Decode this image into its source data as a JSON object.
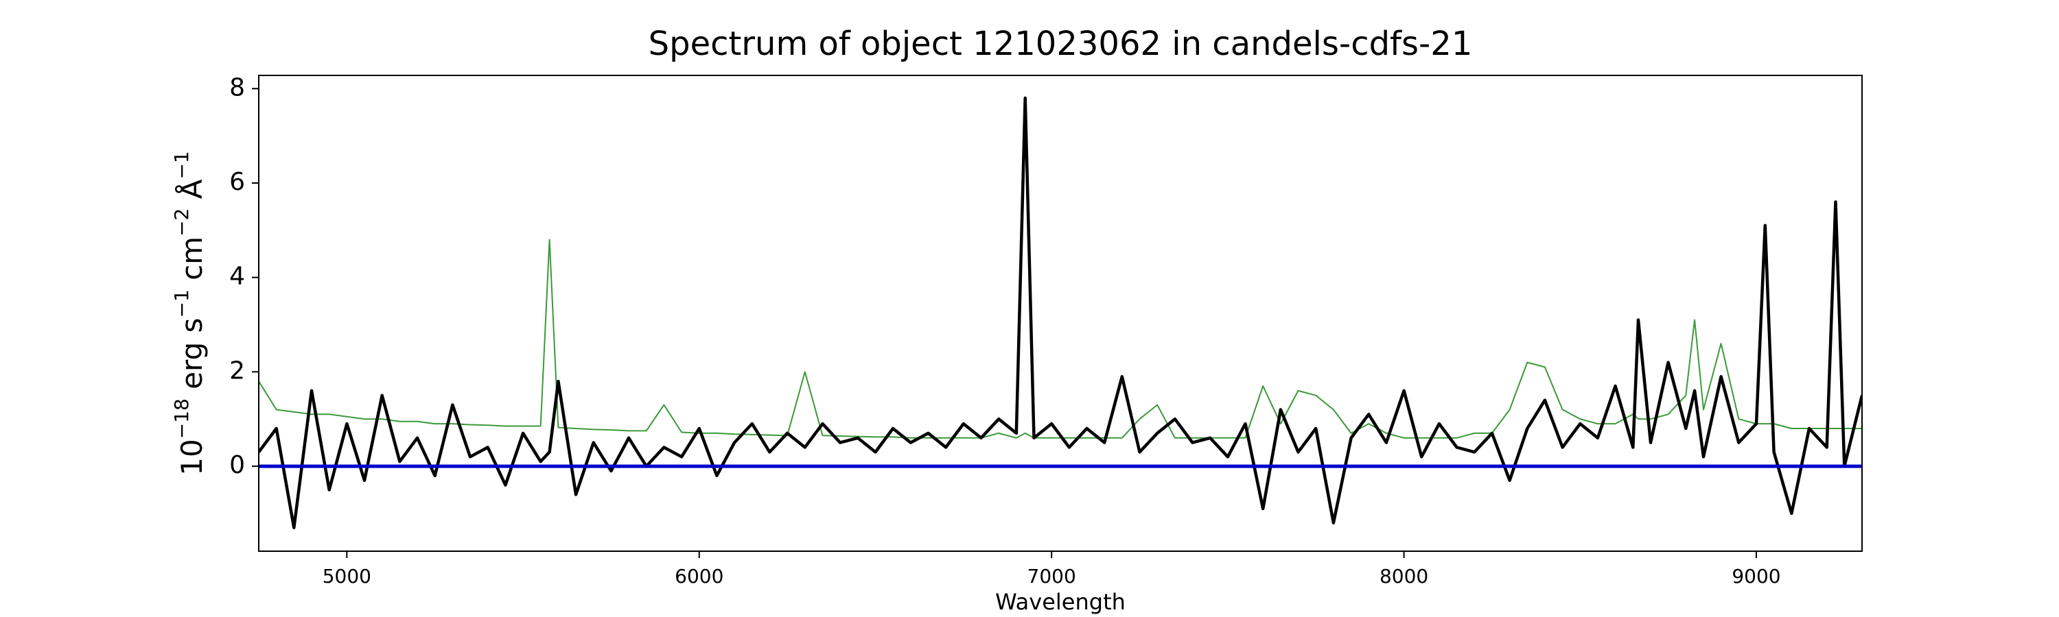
{
  "chart_data": {
    "type": "line",
    "title": "Spectrum of object 121023062 in candels-cdfs-21",
    "xlabel": "Wavelength",
    "ylabel": [
      {
        "text": "10"
      },
      {
        "text": "−18",
        "sup": true
      },
      {
        "text": " erg s"
      },
      {
        "text": "−1",
        "sup": true
      },
      {
        "text": " cm"
      },
      {
        "text": "−2",
        "sup": true
      },
      {
        "text": " Å"
      },
      {
        "text": "−1",
        "sup": true
      }
    ],
    "xlim": [
      4750,
      9300
    ],
    "ylim": [
      -1.8,
      8.28
    ],
    "xticks": [
      5000,
      6000,
      7000,
      8000,
      9000
    ],
    "yticks": [
      0,
      2,
      4,
      6,
      8
    ],
    "hlines": [
      {
        "y": 0,
        "color": "#0000cc"
      }
    ],
    "x": [
      4750,
      4800,
      4850,
      4900,
      4950,
      5000,
      5050,
      5100,
      5150,
      5200,
      5250,
      5300,
      5350,
      5400,
      5450,
      5500,
      5550,
      5575,
      5600,
      5650,
      5700,
      5750,
      5800,
      5850,
      5900,
      5950,
      6000,
      6050,
      6100,
      6150,
      6200,
      6250,
      6300,
      6350,
      6400,
      6450,
      6500,
      6550,
      6600,
      6650,
      6700,
      6750,
      6800,
      6850,
      6900,
      6925,
      6950,
      7000,
      7050,
      7100,
      7150,
      7200,
      7250,
      7300,
      7350,
      7400,
      7450,
      7500,
      7550,
      7600,
      7650,
      7700,
      7750,
      7800,
      7850,
      7900,
      7950,
      8000,
      8050,
      8100,
      8150,
      8200,
      8250,
      8300,
      8350,
      8400,
      8450,
      8500,
      8550,
      8600,
      8650,
      8665,
      8700,
      8750,
      8800,
      8825,
      8850,
      8900,
      8950,
      9000,
      9025,
      9050,
      9100,
      9150,
      9200,
      9225,
      9250,
      9300
    ],
    "series": [
      {
        "color": "#3a9a3a",
        "width": 2,
        "values": [
          1.8,
          1.2,
          1.15,
          1.1,
          1.1,
          1.05,
          1.0,
          1.0,
          0.95,
          0.95,
          0.9,
          0.9,
          0.88,
          0.87,
          0.85,
          0.85,
          0.85,
          4.8,
          0.82,
          0.8,
          0.78,
          0.77,
          0.75,
          0.75,
          1.3,
          0.72,
          0.7,
          0.7,
          0.68,
          0.67,
          0.66,
          0.65,
          2.0,
          0.65,
          0.64,
          0.63,
          0.62,
          0.62,
          0.6,
          0.6,
          0.6,
          0.6,
          0.6,
          0.7,
          0.6,
          0.7,
          0.6,
          0.6,
          0.6,
          0.6,
          0.6,
          0.6,
          1.0,
          1.3,
          0.6,
          0.6,
          0.6,
          0.6,
          0.6,
          1.7,
          0.9,
          1.6,
          1.5,
          1.2,
          0.7,
          0.9,
          0.7,
          0.6,
          0.6,
          0.6,
          0.6,
          0.7,
          0.7,
          1.2,
          2.2,
          2.1,
          1.2,
          1.0,
          0.9,
          0.9,
          1.1,
          1.0,
          1.0,
          1.1,
          1.5,
          3.1,
          1.2,
          2.6,
          1.0,
          0.9,
          0.9,
          0.9,
          0.8,
          0.8,
          0.8,
          0.8,
          0.8,
          0.8
        ]
      },
      {
        "color": "#000000",
        "width": 4.5,
        "values": [
          0.3,
          0.8,
          -1.3,
          1.6,
          -0.5,
          0.9,
          -0.3,
          1.5,
          0.1,
          0.6,
          -0.2,
          1.3,
          0.2,
          0.4,
          -0.4,
          0.7,
          0.1,
          0.3,
          1.8,
          -0.6,
          0.5,
          -0.1,
          0.6,
          0.0,
          0.4,
          0.2,
          0.8,
          -0.2,
          0.5,
          0.9,
          0.3,
          0.7,
          0.4,
          0.9,
          0.5,
          0.6,
          0.3,
          0.8,
          0.5,
          0.7,
          0.4,
          0.9,
          0.6,
          1.0,
          0.7,
          7.8,
          0.6,
          0.9,
          0.4,
          0.8,
          0.5,
          1.9,
          0.3,
          0.7,
          1.0,
          0.5,
          0.6,
          0.2,
          0.9,
          -0.9,
          1.2,
          0.3,
          0.8,
          -1.2,
          0.6,
          1.1,
          0.5,
          1.6,
          0.2,
          0.9,
          0.4,
          0.3,
          0.7,
          -0.3,
          0.8,
          1.4,
          0.4,
          0.9,
          0.6,
          1.7,
          0.4,
          3.1,
          0.5,
          2.2,
          0.8,
          1.6,
          0.2,
          1.9,
          0.5,
          0.9,
          5.1,
          0.3,
          -1.0,
          0.8,
          0.4,
          5.6,
          0.0,
          1.5
        ]
      }
    ]
  }
}
